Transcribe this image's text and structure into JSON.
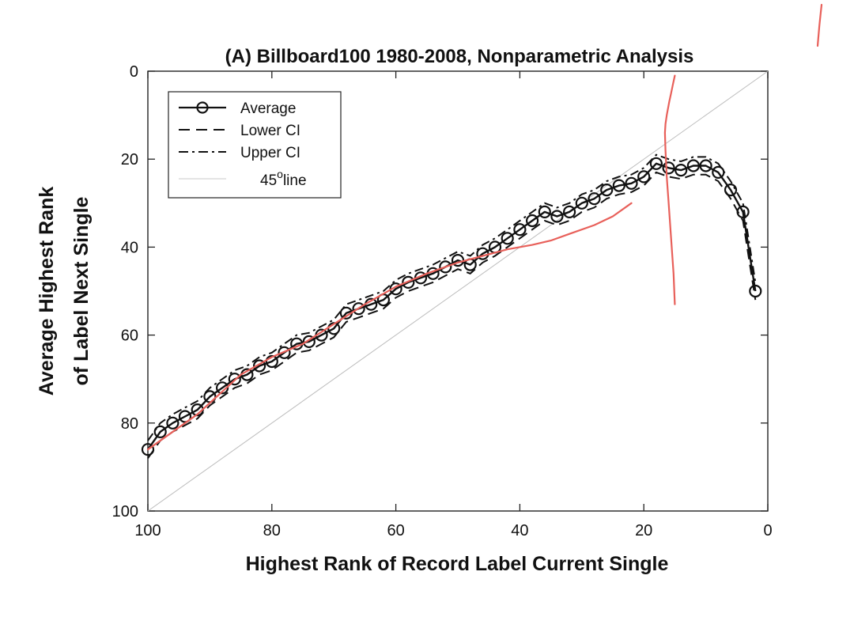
{
  "chart_data": {
    "type": "line",
    "title": "(A) Billboard100 1980-2008, Nonparametric Analysis",
    "xlabel": "Highest Rank of Record Label Current Single",
    "ylabel_line1": "Average Highest Rank",
    "ylabel_line2": "of Label Next Single",
    "xlim": [
      100,
      0
    ],
    "ylim": [
      100,
      0
    ],
    "x_reversed": true,
    "y_reversed": true,
    "xticks": [
      100,
      80,
      60,
      40,
      20,
      0
    ],
    "yticks": [
      0,
      20,
      40,
      60,
      80,
      100
    ],
    "grid": false,
    "legend_position": "top-left",
    "legend": [
      {
        "label": "Average",
        "style": "solid-circle"
      },
      {
        "label": "Lower CI",
        "style": "dashed"
      },
      {
        "label": "Upper CI",
        "style": "dashdot"
      },
      {
        "label": "45",
        "degree_suffix": "o",
        "label_suffix": "line",
        "style": "thin-gray"
      }
    ],
    "series": [
      {
        "name": "Average",
        "x": [
          100,
          98,
          96,
          94,
          92,
          90,
          88,
          86,
          84,
          82,
          80,
          78,
          76,
          74,
          72,
          70,
          68,
          66,
          64,
          62,
          60,
          58,
          56,
          54,
          52,
          50,
          48,
          46,
          44,
          42,
          40,
          38,
          36,
          34,
          32,
          30,
          28,
          26,
          24,
          22,
          20,
          18,
          16,
          14,
          12,
          10,
          8,
          6,
          4,
          2
        ],
        "y": [
          86,
          82,
          80,
          78.5,
          77,
          74,
          72,
          70,
          69,
          67,
          66,
          64,
          62,
          61.5,
          60,
          58.5,
          55,
          54,
          53,
          52,
          49.5,
          48,
          47,
          46,
          44.5,
          43,
          44,
          41.5,
          40,
          38,
          36,
          34,
          32,
          33,
          32,
          30,
          29,
          27,
          26,
          25.5,
          24,
          21,
          22,
          22.5,
          21.5,
          21.5,
          23,
          27,
          32,
          50
        ]
      },
      {
        "name": "Lower CI",
        "x": [
          100,
          98,
          96,
          94,
          92,
          90,
          88,
          86,
          84,
          82,
          80,
          78,
          76,
          74,
          72,
          70,
          68,
          66,
          64,
          62,
          60,
          58,
          56,
          54,
          52,
          50,
          48,
          46,
          44,
          42,
          40,
          38,
          36,
          34,
          32,
          30,
          28,
          26,
          24,
          22,
          20,
          18,
          16,
          14,
          12,
          10,
          8,
          6,
          4,
          2
        ],
        "y": [
          88,
          84,
          82,
          80.5,
          79,
          76,
          74,
          72,
          71,
          69,
          68,
          66,
          64,
          63.5,
          62,
          60.5,
          57,
          56,
          55,
          54,
          51.5,
          50,
          49,
          48,
          46.5,
          45,
          46,
          43.5,
          42,
          40,
          38,
          36,
          34,
          35,
          34,
          32,
          31,
          29,
          28,
          27.5,
          26,
          23,
          24,
          24.5,
          23.5,
          23.5,
          25,
          29,
          34,
          52
        ]
      },
      {
        "name": "Upper CI",
        "x": [
          100,
          98,
          96,
          94,
          92,
          90,
          88,
          86,
          84,
          82,
          80,
          78,
          76,
          74,
          72,
          70,
          68,
          66,
          64,
          62,
          60,
          58,
          56,
          54,
          52,
          50,
          48,
          46,
          44,
          42,
          40,
          38,
          36,
          34,
          32,
          30,
          28,
          26,
          24,
          22,
          20,
          18,
          16,
          14,
          12,
          10,
          8,
          6,
          4,
          2
        ],
        "y": [
          84,
          80,
          78,
          76.5,
          75,
          72,
          70,
          68,
          67,
          65,
          64,
          62,
          60,
          59.5,
          58,
          56.5,
          53,
          52,
          51,
          50,
          47.5,
          46,
          45,
          44,
          42.5,
          41,
          42,
          39.5,
          38,
          36,
          34,
          32,
          30,
          31,
          30,
          28,
          27,
          25,
          24,
          23.5,
          22,
          19,
          20,
          20.5,
          19.5,
          19.5,
          21,
          25,
          30,
          48
        ]
      },
      {
        "name": "45 line",
        "x": [
          100,
          0
        ],
        "y": [
          100,
          0
        ]
      }
    ],
    "annotations": [
      {
        "name": "red-trend-stroke",
        "color": "#e8605a",
        "x": [
          100,
          92,
          85,
          80,
          75,
          70,
          65,
          60,
          55,
          50,
          46,
          42,
          38,
          35,
          32,
          28,
          25,
          22
        ],
        "y": [
          86,
          78,
          69,
          65,
          62,
          57.5,
          53,
          49,
          46,
          43.5,
          42,
          40.5,
          39.5,
          38.5,
          37,
          35,
          33,
          30
        ]
      },
      {
        "name": "red-vertical-stroke",
        "color": "#e8605a",
        "x": [
          15,
          15.2,
          15.6,
          16.0,
          16.3,
          16.5,
          16.6,
          16.5,
          16.3,
          15.9,
          15.6,
          15.3,
          15.0
        ],
        "y": [
          53,
          46,
          38,
          30,
          24,
          18,
          14,
          12,
          10,
          7,
          5,
          3,
          1
        ]
      }
    ]
  }
}
